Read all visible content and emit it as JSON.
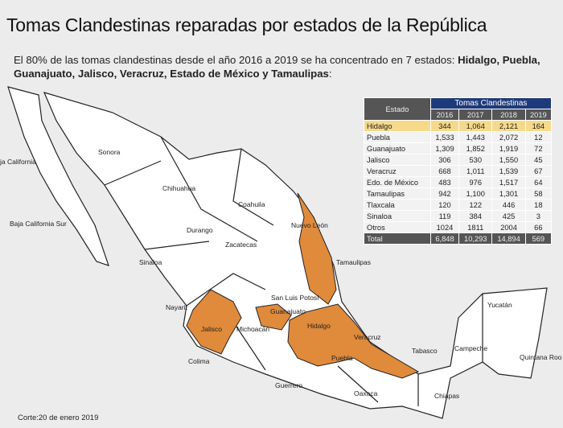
{
  "title": "Tomas Clandestinas reparadas por estados de la República",
  "subtitle_plain": "El 80% de las tomas clandestinas desde el año 2016 a 2019 se ha concentrado en 7 estados: ",
  "subtitle_bold": "Hidalgo, Puebla, Guanajuato, Jalisco, Veracruz, Estado de México y Tamaulipas",
  "subtitle_end": ":",
  "highlight_color": "#e08a3c",
  "table": {
    "header_estado": "Estado",
    "header_group": "Tomas Clandestinas",
    "years": [
      "2016",
      "2017",
      "2018",
      "2019"
    ],
    "rows": [
      [
        "Hidalgo",
        "344",
        "1,064",
        "2,121",
        "164"
      ],
      [
        "Puebla",
        "1,533",
        "1,443",
        "2,072",
        "12"
      ],
      [
        "Guanajuato",
        "1,309",
        "1,852",
        "1,919",
        "72"
      ],
      [
        "Jalisco",
        "306",
        "530",
        "1,550",
        "45"
      ],
      [
        "Veracruz",
        "668",
        "1,011",
        "1,539",
        "67"
      ],
      [
        "Edo. de México",
        "483",
        "976",
        "1,517",
        "64"
      ],
      [
        "Tamaulipas",
        "942",
        "1,100",
        "1,301",
        "58"
      ],
      [
        "Tlaxcala",
        "120",
        "122",
        "446",
        "18"
      ],
      [
        "Sinaloa",
        "119",
        "384",
        "425",
        "3"
      ],
      [
        "Otros",
        "1024",
        "1811",
        "2004",
        "66"
      ]
    ],
    "total": [
      "Total",
      "6,848",
      "10,293",
      "14,894",
      "569"
    ]
  },
  "map_labels": [
    "ja California",
    "Sonora",
    "Chihuahua",
    "Coahuila",
    "Nuevo León",
    "Baja California Sur",
    "Durango",
    "Zacatecas",
    "Sinaloa",
    "Tamaulipas",
    "San Luis Potosí",
    "Nayarit",
    "Guanajuato",
    "Hidalgo",
    "Jalisco",
    "Michoacán",
    "Veracruz",
    "Yucatán",
    "Campeche",
    "Tabasco",
    "Quintana Roo",
    "Colima",
    "Puebla",
    "Guerrero",
    "Oaxaca",
    "Chiapas"
  ],
  "corte": "Corte:20 de enero 2019"
}
